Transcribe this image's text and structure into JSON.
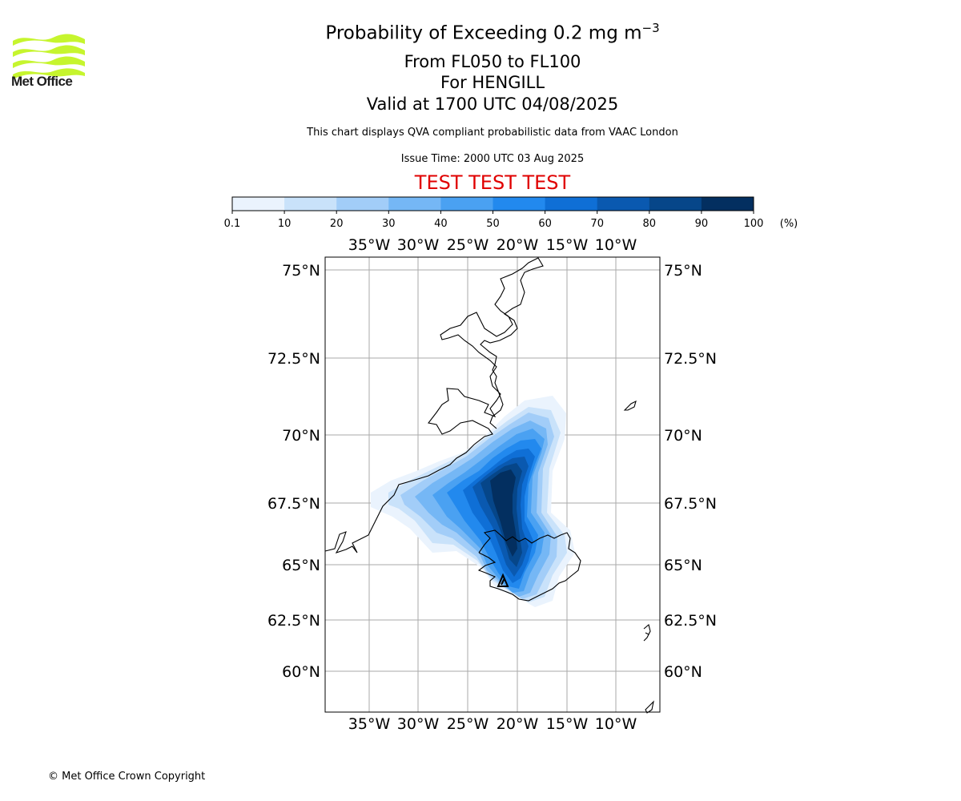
{
  "title": {
    "line1_prefix": "Probability of Exceeding 0.2 mg m",
    "line1_exponent": "−3",
    "line2": "From FL050 to FL100",
    "line3": "For HENGILL",
    "line4": "Valid at 1700 UTC 04/08/2025"
  },
  "subtitle": "This chart displays QVA compliant probabilistic data from VAAC London",
  "issue_time": "Issue Time: 2000 UTC 03 Aug 2025",
  "test_banner": "TEST TEST TEST",
  "logo": {
    "text": "Met Office",
    "icon": "met-office-waves-logo",
    "color": "#c6f52e"
  },
  "copyright": "© Met Office Crown Copyright",
  "colorbar": {
    "unit_label": "(%)",
    "ticks": [
      "0.1",
      "10",
      "20",
      "30",
      "40",
      "50",
      "60",
      "70",
      "80",
      "90",
      "100"
    ],
    "colors": [
      "#eaf3fd",
      "#c9e2fa",
      "#a2cdf8",
      "#75b7f5",
      "#4aa1f2",
      "#2289ee",
      "#0f6fd6",
      "#0a59b0",
      "#064689",
      "#032f60"
    ]
  },
  "map": {
    "lon_labels": [
      "35°W",
      "30°W",
      "25°W",
      "20°W",
      "15°W",
      "10°W"
    ],
    "lat_labels": [
      "75°N",
      "72.5°N",
      "70°N",
      "67.5°N",
      "65°N",
      "62.5°N",
      "60°N"
    ],
    "gridlines": true,
    "coastline_color": "#000000",
    "grid_color": "#aaaaaa"
  }
}
